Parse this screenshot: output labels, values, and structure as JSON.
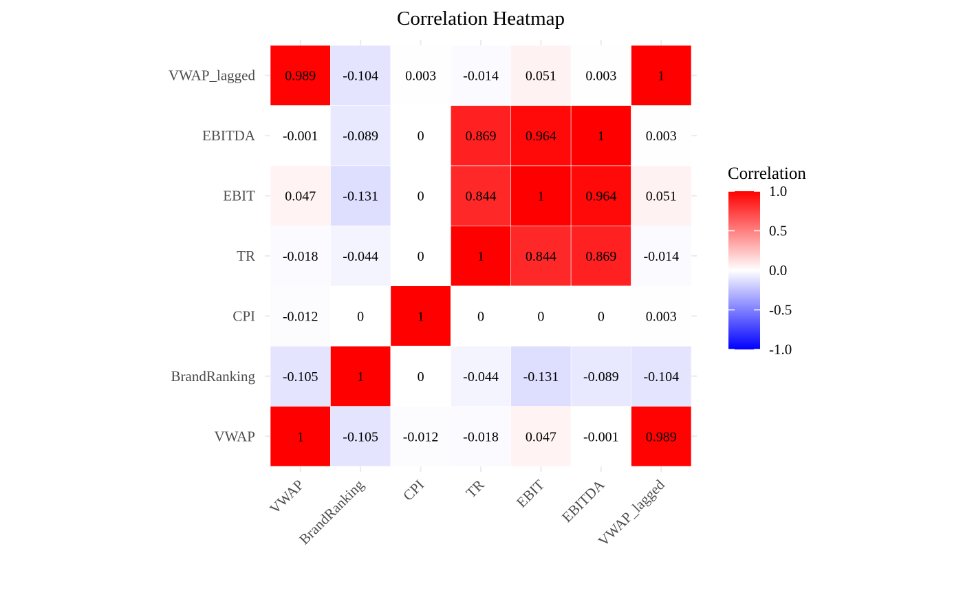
{
  "chart_data": {
    "type": "heatmap",
    "title": "Correlation Heatmap",
    "xlabel": "",
    "ylabel": "",
    "x_categories": [
      "VWAP",
      "BrandRanking",
      "CPI",
      "TR",
      "EBIT",
      "EBITDA",
      "VWAP_lagged"
    ],
    "y_categories": [
      "VWAP",
      "BrandRanking",
      "CPI",
      "TR",
      "EBIT",
      "EBITDA",
      "VWAP_lagged"
    ],
    "matrix": [
      [
        1,
        -0.105,
        -0.012,
        -0.018,
        0.047,
        -0.001,
        0.989
      ],
      [
        -0.105,
        1,
        0,
        -0.044,
        -0.131,
        -0.089,
        -0.104
      ],
      [
        -0.012,
        0,
        1,
        0,
        0,
        0,
        0.003
      ],
      [
        -0.018,
        -0.044,
        0,
        1,
        0.844,
        0.869,
        -0.014
      ],
      [
        0.047,
        -0.131,
        0,
        0.844,
        1,
        0.964,
        0.051
      ],
      [
        -0.001,
        -0.089,
        0,
        0.869,
        0.964,
        1,
        0.003
      ],
      [
        0.989,
        -0.104,
        0.003,
        -0.014,
        0.051,
        0.003,
        1
      ]
    ],
    "cell_labels": [
      [
        "1",
        "-0.105",
        "-0.012",
        "-0.018",
        "0.047",
        "-0.001",
        "0.989"
      ],
      [
        "-0.105",
        "1",
        "0",
        "-0.044",
        "-0.131",
        "-0.089",
        "-0.104"
      ],
      [
        "-0.012",
        "0",
        "1",
        "0",
        "0",
        "0",
        "0.003"
      ],
      [
        "-0.018",
        "-0.044",
        "0",
        "1",
        "0.844",
        "0.869",
        "-0.014"
      ],
      [
        "0.047",
        "-0.131",
        "0",
        "0.844",
        "1",
        "0.964",
        "0.051"
      ],
      [
        "-0.001",
        "-0.089",
        "0",
        "0.869",
        "0.964",
        "1",
        "0.003"
      ],
      [
        "0.989",
        "-0.104",
        "0.003",
        "-0.014",
        "0.051",
        "0.003",
        "1"
      ]
    ],
    "color_scale": {
      "low": "#0000ff",
      "mid": "#ffffff",
      "high": "#ff0000",
      "limits": [
        -1,
        1
      ]
    },
    "legend": {
      "title": "Correlation",
      "position": "right",
      "ticks": [
        1.0,
        0.5,
        0.0,
        -0.5,
        -1.0
      ],
      "tick_labels": [
        "1.0",
        "0.5",
        "0.0",
        "-0.5",
        "-1.0"
      ]
    },
    "grid": true
  }
}
